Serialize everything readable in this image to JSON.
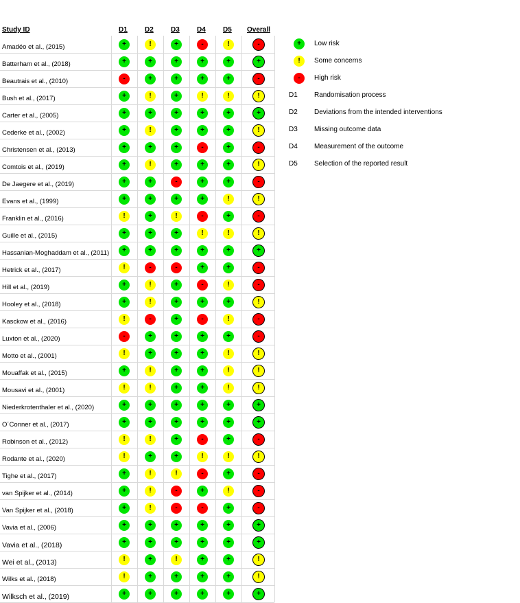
{
  "headers": {
    "study_id": "Study ID",
    "domains": [
      "D1",
      "D2",
      "D3",
      "D4",
      "D5"
    ],
    "overall": "Overall"
  },
  "symbols": {
    "low": "+",
    "some": "!",
    "high": "-"
  },
  "colors": {
    "low": "#00e600",
    "some": "#ffff00",
    "high": "#ff0000"
  },
  "studies": [
    {
      "name": "Amadéo et al., (2015)",
      "r": [
        "low",
        "some",
        "low",
        "high",
        "some"
      ],
      "overall": "high"
    },
    {
      "name": "Batterham et al., (2018)",
      "r": [
        "low",
        "low",
        "low",
        "low",
        "low"
      ],
      "overall": "low"
    },
    {
      "name": "Beautrais et al., (2010)",
      "r": [
        "high",
        "low",
        "low",
        "low",
        "low"
      ],
      "overall": "high"
    },
    {
      "name": "Bush et al., (2017)",
      "r": [
        "low",
        "some",
        "low",
        "some",
        "some"
      ],
      "overall": "some"
    },
    {
      "name": "Carter et al., (2005)",
      "r": [
        "low",
        "low",
        "low",
        "low",
        "low"
      ],
      "overall": "low"
    },
    {
      "name": "Cederke et al., (2002)",
      "r": [
        "low",
        "some",
        "low",
        "low",
        "low"
      ],
      "overall": "some"
    },
    {
      "name": "Christensen et al., (2013)",
      "r": [
        "low",
        "low",
        "low",
        "high",
        "low"
      ],
      "overall": "high"
    },
    {
      "name": "Comtois et al., (2019)",
      "r": [
        "low",
        "some",
        "low",
        "low",
        "low"
      ],
      "overall": "some"
    },
    {
      "name": "De Jaegere et al., (2019)",
      "r": [
        "low",
        "low",
        "high",
        "low",
        "low"
      ],
      "overall": "high"
    },
    {
      "name": "Evans et al., (1999)",
      "r": [
        "low",
        "low",
        "low",
        "low",
        "some"
      ],
      "overall": "some"
    },
    {
      "name": "Franklin et al., (2016)",
      "r": [
        "some",
        "low",
        "some",
        "high",
        "low"
      ],
      "overall": "high"
    },
    {
      "name": "Guille et al., (2015)",
      "r": [
        "low",
        "low",
        "low",
        "some",
        "some"
      ],
      "overall": "some"
    },
    {
      "name": "Hassanian-Moghaddam et al., (2011)",
      "r": [
        "low",
        "low",
        "low",
        "low",
        "low"
      ],
      "overall": "low"
    },
    {
      "name": "Hetrick et al., (2017)",
      "r": [
        "some",
        "high",
        "high",
        "low",
        "low"
      ],
      "overall": "high"
    },
    {
      "name": "Hill et al., (2019)",
      "r": [
        "low",
        "some",
        "low",
        "high",
        "some"
      ],
      "overall": "high"
    },
    {
      "name": "Hooley et al., (2018)",
      "r": [
        "low",
        "some",
        "low",
        "low",
        "low"
      ],
      "overall": "some"
    },
    {
      "name": "Kasckow et al., (2016)",
      "r": [
        "some",
        "high",
        "low",
        "high",
        "some"
      ],
      "overall": "high"
    },
    {
      "name": "Luxton et al., (2020)",
      "r": [
        "high",
        "low",
        "low",
        "low",
        "low"
      ],
      "overall": "high"
    },
    {
      "name": "Motto et al., (2001)",
      "r": [
        "some",
        "low",
        "low",
        "low",
        "some"
      ],
      "overall": "some"
    },
    {
      "name": "Mouaffak et al., (2015)",
      "r": [
        "low",
        "some",
        "low",
        "low",
        "some"
      ],
      "overall": "some"
    },
    {
      "name": "Mousavi et al., (2001)",
      "r": [
        "some",
        "some",
        "low",
        "low",
        "some"
      ],
      "overall": "some"
    },
    {
      "name": "Niederkrotenthaler et al., (2020)",
      "r": [
        "low",
        "low",
        "low",
        "low",
        "low"
      ],
      "overall": "low"
    },
    {
      "name": "O´Conner et al., (2017)",
      "r": [
        "low",
        "low",
        "low",
        "low",
        "low"
      ],
      "overall": "low"
    },
    {
      "name": "Robinson et al., (2012)",
      "r": [
        "some",
        "some",
        "low",
        "high",
        "low"
      ],
      "overall": "high"
    },
    {
      "name": "Rodante et al., (2020)",
      "r": [
        "some",
        "low",
        "low",
        "some",
        "some"
      ],
      "overall": "some"
    },
    {
      "name": "Tighe et al., (2017)",
      "r": [
        "low",
        "some",
        "some",
        "high",
        "low"
      ],
      "overall": "high"
    },
    {
      "name": "van Spijker et al., (2014)",
      "r": [
        "low",
        "some",
        "high",
        "low",
        "some"
      ],
      "overall": "high"
    },
    {
      "name": "Van Spijker et al., (2018)",
      "r": [
        "low",
        "some",
        "high",
        "high",
        "low"
      ],
      "overall": "high"
    },
    {
      "name": "Vavia et al., (2006)",
      "r": [
        "low",
        "low",
        "low",
        "low",
        "low"
      ],
      "overall": "low"
    },
    {
      "name": "Vavia et al., (2018)",
      "r": [
        "low",
        "low",
        "low",
        "low",
        "low"
      ],
      "overall": "low",
      "big": true
    },
    {
      "name": "Wei et al.,  (2013)",
      "r": [
        "some",
        "low",
        "some",
        "low",
        "low"
      ],
      "overall": "some",
      "big": true
    },
    {
      "name": "Wilks et al., (2018)",
      "r": [
        "some",
        "low",
        "low",
        "low",
        "low"
      ],
      "overall": "some"
    },
    {
      "name": "Wilksch et al., (2019)",
      "r": [
        "low",
        "low",
        "low",
        "low",
        "low"
      ],
      "overall": "low",
      "big": true
    }
  ],
  "legend": {
    "judgements": [
      {
        "level": "low",
        "label": "Low risk"
      },
      {
        "level": "some",
        "label": "Some concerns"
      },
      {
        "level": "high",
        "label": "High risk"
      }
    ],
    "domains": [
      {
        "key": "D1",
        "label": "Randomisation process"
      },
      {
        "key": "D2",
        "label": "Deviations from the intended interventions"
      },
      {
        "key": "D3",
        "label": "Missing outcome data"
      },
      {
        "key": "D4",
        "label": "Measurement of the outcome"
      },
      {
        "key": "D5",
        "label": "Selection of the reported result"
      }
    ]
  }
}
